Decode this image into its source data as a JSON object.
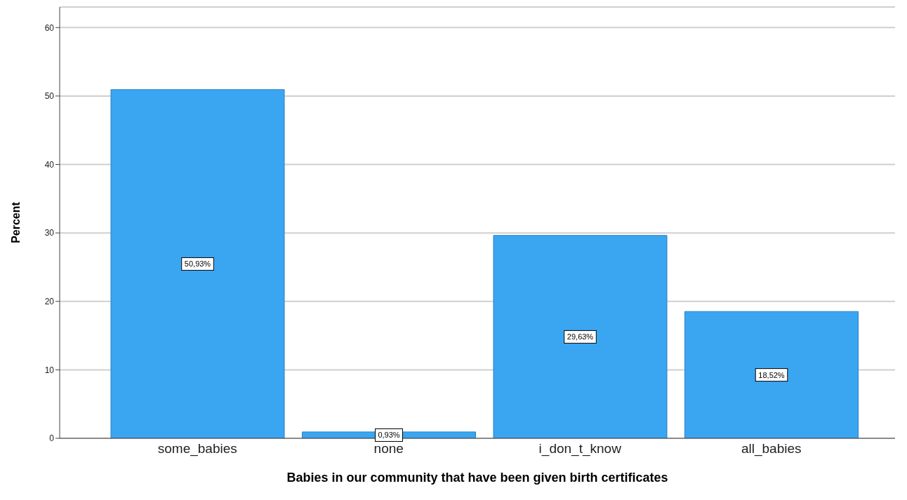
{
  "chart_data": {
    "type": "bar",
    "xlabel": "Babies in our community that have been given birth certificates",
    "ylabel": "Percent",
    "categories": [
      "some_babies",
      "none",
      "i_don_t_know",
      "all_babies"
    ],
    "values": [
      50.93,
      0.93,
      29.63,
      18.52
    ],
    "value_labels": [
      "50,93%",
      "0,93%",
      "29,63%",
      "18,52%"
    ],
    "color": "#3aa6f2",
    "ylim": [
      0,
      63
    ],
    "yticks": [
      0,
      10,
      20,
      30,
      40,
      50,
      60
    ],
    "grid": "y"
  }
}
